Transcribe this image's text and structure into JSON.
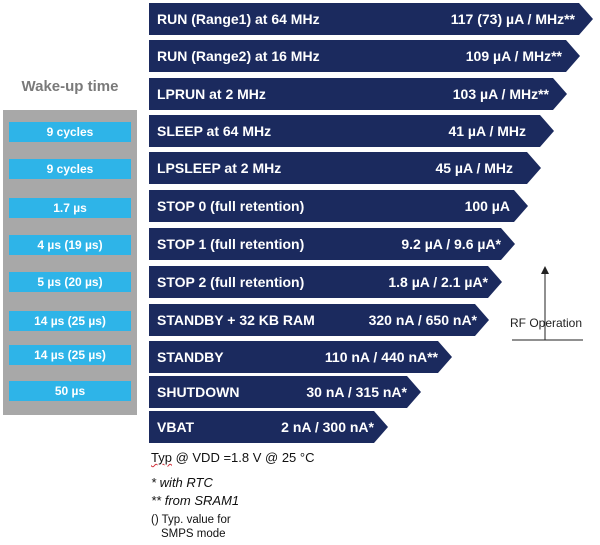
{
  "wakeup": {
    "title": "Wake-up time",
    "cells": [
      "9 cycles",
      "9 cycles",
      "1.7 µs",
      "4 µs (19 µs)",
      "5 µs (20 µs)",
      "14 µs (25 µs)",
      "14 µs (25 µs)",
      "50 µs"
    ]
  },
  "modes": [
    {
      "label": "RUN (Range1) at 64 MHz",
      "value": "117 (73) µA / MHz**"
    },
    {
      "label": "RUN (Range2) at 16 MHz",
      "value": "109 µA / MHz**"
    },
    {
      "label": "LPRUN at 2 MHz",
      "value": "103 µA / MHz**"
    },
    {
      "label": "SLEEP at 64 MHz",
      "value": "41 µA / MHz"
    },
    {
      "label": "LPSLEEP at 2 MHz",
      "value": "45 µA / MHz"
    },
    {
      "label": "STOP 0 (full retention)",
      "value": "100 µA"
    },
    {
      "label": "STOP 1 (full retention)",
      "value": "9.2 µA / 9.6 µA*"
    },
    {
      "label": "STOP 2 (full retention)",
      "value": "1.8 µA / 2.1 µA*"
    },
    {
      "label": "STANDBY + 32 KB RAM",
      "value": "320 nA / 650 nA*"
    },
    {
      "label": "STANDBY",
      "value": "110 nA / 440 nA**"
    },
    {
      "label": "SHUTDOWN",
      "value": "30 nA / 315 nA*"
    },
    {
      "label": "VBAT",
      "value": "2 nA / 300 nA*"
    }
  ],
  "notes": {
    "typ_prefix": "Typ",
    "typ_rest": " @ VDD =1.8 V @ 25 °C",
    "with_rtc": "* with RTC",
    "from_sram": "** from SRAM1",
    "typ_smps_1": "() Typ. value for",
    "typ_smps_2": "SMPS mode"
  },
  "rf": {
    "label": "RF Operation"
  },
  "colors": {
    "bar": "#1b2a5e",
    "cell": "#2eb4e8",
    "panel": "#a8a8a8",
    "title": "#7a7a7a"
  }
}
